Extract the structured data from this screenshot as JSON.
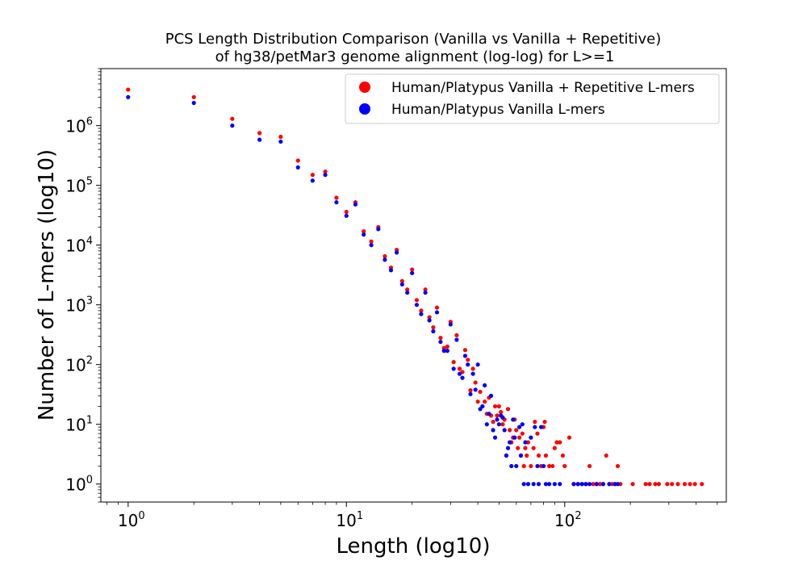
{
  "chart_data": {
    "type": "scatter",
    "title_line1": "PCS Length Distribution Comparison (Vanilla vs Vanilla + Repetitive)",
    "title_line2": "of hg38/petMar3 genome alignment (log-log) for L>=1",
    "xlabel": "Length (log10)",
    "ylabel": "Number of L-mers (log10)",
    "xscale": "log",
    "yscale": "log",
    "xlim": [
      0.75,
      550
    ],
    "ylim": [
      0.5,
      9000000
    ],
    "x_ticks": [
      {
        "base": "10",
        "exp": "0",
        "value": 1
      },
      {
        "base": "10",
        "exp": "1",
        "value": 10
      },
      {
        "base": "10",
        "exp": "2",
        "value": 100
      }
    ],
    "y_ticks": [
      {
        "base": "10",
        "exp": "0",
        "value": 1
      },
      {
        "base": "10",
        "exp": "1",
        "value": 10
      },
      {
        "base": "10",
        "exp": "2",
        "value": 100
      },
      {
        "base": "10",
        "exp": "3",
        "value": 1000
      },
      {
        "base": "10",
        "exp": "4",
        "value": 10000
      },
      {
        "base": "10",
        "exp": "5",
        "value": 100000
      },
      {
        "base": "10",
        "exp": "6",
        "value": 1000000
      }
    ],
    "legend_position": "upper right",
    "grid": false,
    "series": [
      {
        "name": "Human/Platypus Vanilla + Repetitive L-mers",
        "color": "#ff0000",
        "points": [
          [
            1,
            4000000
          ],
          [
            2,
            3000000
          ],
          [
            3,
            1300000
          ],
          [
            4,
            750000
          ],
          [
            5,
            650000
          ],
          [
            6,
            260000
          ],
          [
            7,
            150000
          ],
          [
            8,
            170000
          ],
          [
            9,
            62000
          ],
          [
            10,
            36000
          ],
          [
            11,
            52000
          ],
          [
            12,
            17000
          ],
          [
            13,
            11500
          ],
          [
            14,
            20000
          ],
          [
            15,
            6500
          ],
          [
            16,
            4200
          ],
          [
            17,
            8300
          ],
          [
            18,
            2500
          ],
          [
            19,
            1800
          ],
          [
            20,
            3900
          ],
          [
            21,
            1200
          ],
          [
            22,
            800
          ],
          [
            23,
            1800
          ],
          [
            24,
            620
          ],
          [
            25,
            420
          ],
          [
            26,
            900
          ],
          [
            27,
            280
          ],
          [
            28,
            190
          ],
          [
            29,
            200
          ],
          [
            30,
            520
          ],
          [
            31,
            110
          ],
          [
            32,
            310
          ],
          [
            33,
            85
          ],
          [
            34,
            75
          ],
          [
            35,
            175
          ],
          [
            36,
            120
          ],
          [
            37,
            37
          ],
          [
            38,
            85
          ],
          [
            39,
            50
          ],
          [
            40,
            24
          ],
          [
            41,
            35
          ],
          [
            42,
            20
          ],
          [
            43,
            24
          ],
          [
            44,
            15
          ],
          [
            45,
            28
          ],
          [
            46,
            14
          ],
          [
            47,
            11
          ],
          [
            48,
            20
          ],
          [
            49,
            14
          ],
          [
            50,
            20
          ],
          [
            51,
            16
          ],
          [
            52,
            10
          ],
          [
            53,
            12
          ],
          [
            54,
            3
          ],
          [
            55,
            18
          ],
          [
            56,
            8
          ],
          [
            57,
            5
          ],
          [
            58,
            6
          ],
          [
            59,
            12
          ],
          [
            60,
            8
          ],
          [
            61,
            4
          ],
          [
            62,
            6
          ],
          [
            63,
            3
          ],
          [
            64,
            7
          ],
          [
            65,
            2
          ],
          [
            66,
            4
          ],
          [
            67,
            3
          ],
          [
            68,
            5
          ],
          [
            70,
            2
          ],
          [
            72,
            4
          ],
          [
            73,
            11
          ],
          [
            75,
            7
          ],
          [
            76,
            3
          ],
          [
            78,
            2
          ],
          [
            80,
            9
          ],
          [
            81,
            11
          ],
          [
            82,
            3
          ],
          [
            85,
            2
          ],
          [
            88,
            2
          ],
          [
            90,
            4
          ],
          [
            92,
            5
          ],
          [
            95,
            5
          ],
          [
            98,
            3
          ],
          [
            100,
            2
          ],
          [
            105,
            6
          ],
          [
            110,
            1
          ],
          [
            115,
            1
          ],
          [
            120,
            1
          ],
          [
            125,
            1
          ],
          [
            130,
            2
          ],
          [
            135,
            1
          ],
          [
            140,
            1
          ],
          [
            145,
            1
          ],
          [
            150,
            1
          ],
          [
            155,
            3
          ],
          [
            160,
            1
          ],
          [
            165,
            1
          ],
          [
            170,
            1
          ],
          [
            175,
            2
          ],
          [
            180,
            1
          ],
          [
            205,
            1
          ],
          [
            235,
            1
          ],
          [
            245,
            1
          ],
          [
            260,
            1
          ],
          [
            270,
            1
          ],
          [
            295,
            1
          ],
          [
            310,
            1
          ],
          [
            330,
            1
          ],
          [
            355,
            1
          ],
          [
            375,
            1
          ],
          [
            395,
            1
          ],
          [
            425,
            1
          ]
        ]
      },
      {
        "name": "Human/Platypus Vanilla L-mers",
        "color": "#0000ff",
        "points": [
          [
            1,
            3000000
          ],
          [
            2,
            2400000
          ],
          [
            3,
            1000000
          ],
          [
            4,
            580000
          ],
          [
            5,
            540000
          ],
          [
            6,
            200000
          ],
          [
            7,
            120000
          ],
          [
            8,
            150000
          ],
          [
            9,
            52000
          ],
          [
            10,
            31000
          ],
          [
            11,
            48000
          ],
          [
            12,
            15000
          ],
          [
            13,
            10000
          ],
          [
            14,
            18500
          ],
          [
            15,
            5700
          ],
          [
            16,
            3800
          ],
          [
            17,
            7500
          ],
          [
            18,
            2200
          ],
          [
            19,
            1600
          ],
          [
            20,
            3400
          ],
          [
            21,
            1000
          ],
          [
            22,
            700
          ],
          [
            23,
            1600
          ],
          [
            24,
            550
          ],
          [
            25,
            360
          ],
          [
            26,
            750
          ],
          [
            27,
            240
          ],
          [
            28,
            170
          ],
          [
            29,
            170
          ],
          [
            30,
            470
          ],
          [
            31,
            85
          ],
          [
            32,
            260
          ],
          [
            33,
            70
          ],
          [
            34,
            60
          ],
          [
            35,
            140
          ],
          [
            36,
            100
          ],
          [
            37,
            32
          ],
          [
            38,
            70
          ],
          [
            39,
            38
          ],
          [
            40,
            100
          ],
          [
            41,
            18
          ],
          [
            42,
            20
          ],
          [
            43,
            45
          ],
          [
            44,
            10
          ],
          [
            45,
            15
          ],
          [
            46,
            30
          ],
          [
            47,
            8
          ],
          [
            48,
            6
          ],
          [
            49,
            12
          ],
          [
            50,
            10
          ],
          [
            51,
            14
          ],
          [
            52,
            13
          ],
          [
            53,
            8
          ],
          [
            54,
            3
          ],
          [
            55,
            4
          ],
          [
            56,
            5
          ],
          [
            57,
            2
          ],
          [
            58,
            12
          ],
          [
            59,
            6
          ],
          [
            60,
            2
          ],
          [
            62,
            9
          ],
          [
            63,
            3
          ],
          [
            64,
            10
          ],
          [
            65,
            1
          ],
          [
            66,
            5
          ],
          [
            68,
            1
          ],
          [
            70,
            6
          ],
          [
            72,
            1
          ],
          [
            73,
            9
          ],
          [
            75,
            2
          ],
          [
            76,
            1
          ],
          [
            78,
            9
          ],
          [
            80,
            2
          ],
          [
            82,
            1
          ],
          [
            85,
            1
          ],
          [
            90,
            1
          ],
          [
            95,
            1
          ],
          [
            110,
            1
          ],
          [
            115,
            1
          ],
          [
            120,
            1
          ],
          [
            125,
            1
          ],
          [
            130,
            1
          ],
          [
            140,
            1
          ],
          [
            150,
            1
          ],
          [
            160,
            1
          ],
          [
            170,
            1
          ],
          [
            175,
            1
          ]
        ]
      }
    ]
  }
}
